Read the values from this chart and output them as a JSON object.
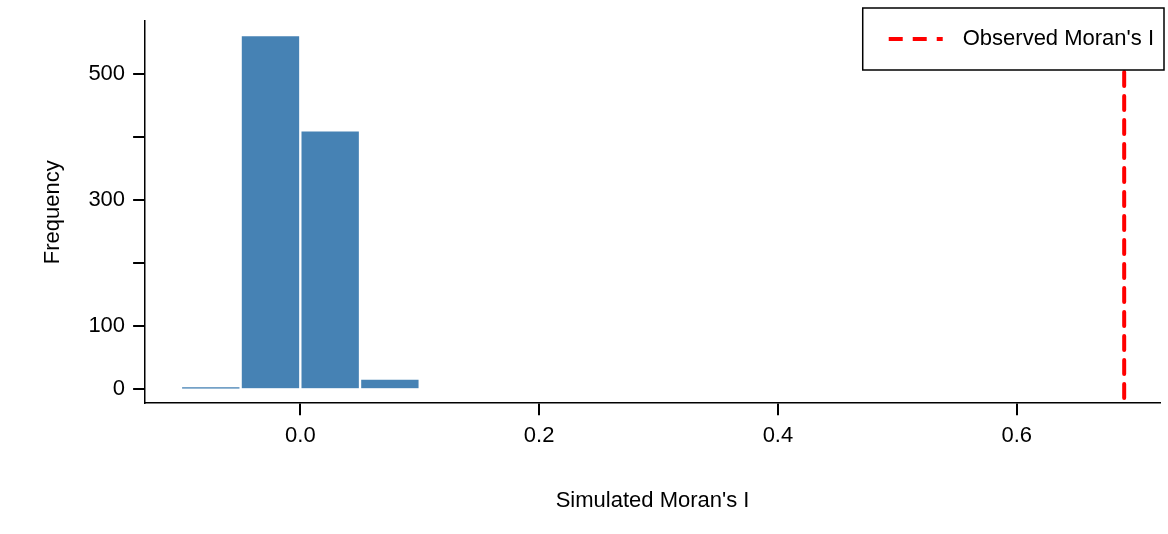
{
  "chart_data": {
    "type": "histogram",
    "xlabel": "Simulated Moran's I",
    "ylabel": "Frequency",
    "bins": [
      -0.1,
      -0.05,
      0,
      0.05,
      0.1
    ],
    "values": [
      4,
      561,
      410,
      17
    ],
    "color": "#4682b4",
    "xlim": [
      -0.13,
      0.72
    ],
    "ylim": [
      -22,
      583
    ],
    "xticks": [
      {
        "value": 0,
        "label": "0.0"
      },
      {
        "value": 0.2,
        "label": "0.2"
      },
      {
        "value": 0.4,
        "label": "0.4"
      },
      {
        "value": 0.6,
        "label": "0.6"
      }
    ],
    "yticks": [
      0,
      100,
      {
        "value": 200,
        "label": null
      },
      300,
      {
        "value": 400,
        "label": null
      },
      500
    ],
    "ref_lines": [
      {
        "axis": "x",
        "value": 0.69,
        "label": "Observed Moran's I",
        "color": "#ff0000",
        "line_style": "dashed"
      }
    ],
    "legend": "top right",
    "grid": false
  }
}
